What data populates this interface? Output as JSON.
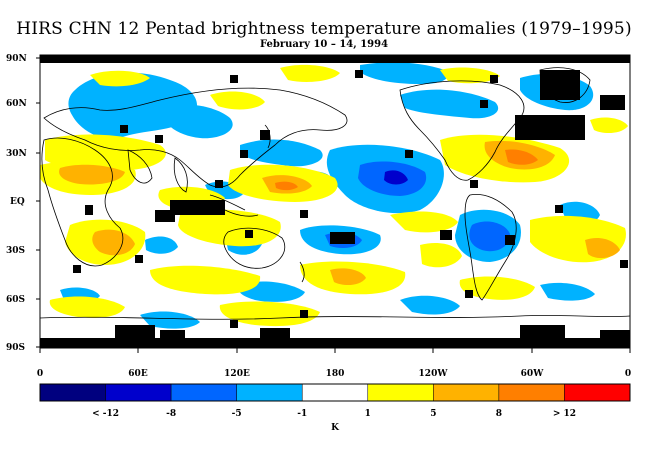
{
  "title": "HIRS CHN 12 Pentad brightness temperature anomalies (1979–1995)",
  "subtitle": "February 10 – 14, 1994",
  "y_labels": [
    "90N",
    "60N",
    "30N",
    "EQ",
    "30S",
    "60S",
    "90S"
  ],
  "x_labels": [
    "0",
    "60E",
    "120E",
    "180",
    "120W",
    "60W",
    "0"
  ],
  "colorbar": {
    "colors": [
      "#00007f",
      "#0000cc",
      "#0066ff",
      "#00b2ff",
      "#ffffff",
      "#ffff00",
      "#ffb200",
      "#ff7f00",
      "#ff0000"
    ],
    "labels": [
      "< -12",
      "-8",
      "-5",
      "-1",
      "1",
      "5",
      "8",
      "> 12"
    ],
    "unit": "K"
  },
  "colors": {
    "strong_warm": "#ff7f00",
    "warm": "#ffb200",
    "mild_warm": "#ffff00",
    "mild_cold": "#00b2ff",
    "cold": "#0066ff",
    "strong_cold": "#0000cc",
    "missing": "#000000",
    "coast": "#000000"
  }
}
